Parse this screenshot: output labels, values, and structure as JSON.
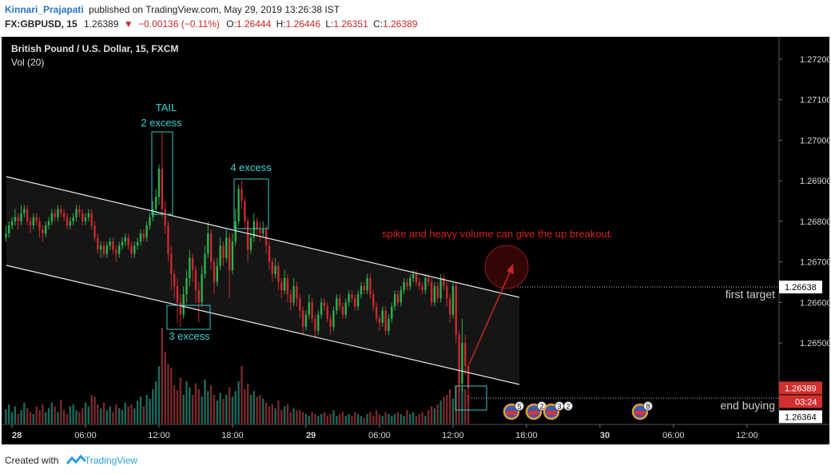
{
  "header": {
    "author": "Kinnari_Prajapati",
    "published": "published on TradingView.com, May 29, 2019 13:26:38 IST",
    "symbol": "FX:GBPUSD, 15",
    "direction": "▼",
    "change": "−0.00136 (−0.11%)",
    "ohlc_labels": [
      "O:",
      "H:",
      "L:",
      "C:"
    ]
  },
  "chart_data": {
    "type": "candlestick",
    "title": "British Pound / U.S. Dollar, 15, FXCM",
    "subtitle": "Vol (20)",
    "x": [
      -0.5,
      -0.25,
      0,
      0.25,
      0.5,
      0.75,
      1,
      1.25,
      1.5,
      1.75,
      2,
      2.25,
      2.5,
      2.75,
      3,
      3.25,
      3.5,
      3.75,
      4,
      4.25,
      4.5,
      4.75,
      5,
      5.25,
      5.5,
      5.75,
      6,
      6.25,
      6.5,
      6.75,
      7,
      7.25,
      7.5,
      7.75,
      8,
      8.25,
      8.5,
      8.75,
      9,
      9.25,
      9.5,
      9.75,
      10,
      10.25,
      10.5,
      10.75,
      11,
      11.25,
      11.5,
      11.75,
      12,
      12.25,
      12.5,
      12.75,
      13,
      13.25,
      13.5,
      13.75,
      14,
      14.25,
      14.5,
      14.75,
      15,
      15.25,
      15.5,
      15.75,
      16,
      16.25,
      16.5,
      16.75,
      17,
      17.25,
      17.5,
      17.75,
      18,
      18.25,
      18.5,
      18.75,
      19,
      19.25,
      19.5,
      19.75,
      20,
      20.25,
      20.5,
      20.75,
      21,
      21.25,
      21.5,
      21.75,
      22,
      22.25,
      22.5,
      22.75,
      23,
      23.25,
      23.5,
      23.75,
      24,
      24.25,
      24.5,
      24.75,
      25,
      25.25,
      25.5,
      25.75,
      26,
      26.25,
      26.5,
      26.75,
      27,
      27.25,
      27.5,
      27.75,
      28,
      28.25,
      28.5,
      28.75,
      29,
      29.25,
      29.5,
      29.75,
      30,
      30.25,
      30.5,
      30.75,
      31,
      31.25,
      31.5,
      31.75,
      32,
      32.25,
      32.5,
      32.75,
      33,
      33.25,
      33.5,
      33.75,
      34,
      34.25,
      34.5,
      34.75,
      35,
      35.25,
      35.5,
      35.75,
      36,
      36.25,
      36.5,
      36.75,
      37,
      37.25
    ],
    "open": [
      1.2676,
      1.2677,
      1.2679,
      1.268,
      1.2681,
      1.268,
      1.2682,
      1.2683,
      1.268,
      1.2679,
      1.2681,
      1.268,
      1.2678,
      1.2677,
      1.2679,
      1.268,
      1.2682,
      1.2681,
      1.2683,
      1.2682,
      1.2681,
      1.2679,
      1.268,
      1.2681,
      1.2683,
      1.2682,
      1.268,
      1.2681,
      1.2682,
      1.2679,
      1.2676,
      1.2673,
      1.2674,
      1.2672,
      1.2674,
      1.2675,
      1.2673,
      1.2672,
      1.2674,
      1.2675,
      1.2676,
      1.2674,
      1.2672,
      1.2674,
      1.2675,
      1.2677,
      1.2676,
      1.2679,
      1.2681,
      1.2683,
      1.2686,
      1.2693,
      1.2683,
      1.2679,
      1.2672,
      1.2667,
      1.2664,
      1.266,
      1.2657,
      1.2662,
      1.2666,
      1.2671,
      1.2668,
      1.2663,
      1.266,
      1.2667,
      1.2672,
      1.2677,
      1.267,
      1.2665,
      1.2669,
      1.2674,
      1.2671,
      1.2676,
      1.2668,
      1.2675,
      1.268,
      1.2688,
      1.2685,
      1.268,
      1.2673,
      1.2676,
      1.268,
      1.2678,
      1.2677,
      1.2678,
      1.2674,
      1.267,
      1.2667,
      1.2669,
      1.2665,
      1.2663,
      1.2666,
      1.2662,
      1.266,
      1.2664,
      1.2661,
      1.2658,
      1.2654,
      1.2657,
      1.266,
      1.2656,
      1.2653,
      1.2657,
      1.266,
      1.2659,
      1.2656,
      1.2654,
      1.2658,
      1.2661,
      1.2659,
      1.2657,
      1.266,
      1.2662,
      1.2661,
      1.2659,
      1.2662,
      1.2664,
      1.2663,
      1.2666,
      1.2662,
      1.2659,
      1.2656,
      1.2655,
      1.2658,
      1.2653,
      1.2656,
      1.2659,
      1.2662,
      1.266,
      1.2663,
      1.2665,
      1.2664,
      1.2666,
      1.2667,
      1.2665,
      1.2664,
      1.2663,
      1.2666,
      1.2665,
      1.266,
      1.2664,
      1.2661,
      1.2666,
      1.2664,
      1.2661,
      1.2657,
      1.2664,
      1.2652,
      1.264,
      1.265,
      1.26444
    ],
    "high": [
      1.2679,
      1.268,
      1.2681,
      1.2683,
      1.2682,
      1.2684,
      1.2684,
      1.2684,
      1.2681,
      1.2682,
      1.2682,
      1.2681,
      1.2679,
      1.268,
      1.2681,
      1.2683,
      1.2683,
      1.2684,
      1.2684,
      1.2683,
      1.2682,
      1.2681,
      1.2682,
      1.2684,
      1.2684,
      1.2683,
      1.2682,
      1.2683,
      1.2683,
      1.268,
      1.2677,
      1.2675,
      1.2675,
      1.2675,
      1.2676,
      1.2676,
      1.2674,
      1.2675,
      1.2676,
      1.2677,
      1.2677,
      1.2675,
      1.2675,
      1.2676,
      1.2678,
      1.2678,
      1.268,
      1.2682,
      1.2685,
      1.2688,
      1.2694,
      1.2702,
      1.2685,
      1.268,
      1.2674,
      1.2668,
      1.2666,
      1.2662,
      1.2664,
      1.2668,
      1.2673,
      1.2672,
      1.2669,
      1.2665,
      1.2669,
      1.2674,
      1.268,
      1.2678,
      1.2671,
      1.2671,
      1.2676,
      1.2675,
      1.2678,
      1.2677,
      1.2677,
      1.2683,
      1.2689,
      1.269,
      1.2686,
      1.2681,
      1.2678,
      1.2682,
      1.2681,
      1.268,
      1.268,
      1.2679,
      1.2675,
      1.2671,
      1.2671,
      1.267,
      1.2666,
      1.2668,
      1.2667,
      1.2663,
      1.2666,
      1.2665,
      1.2662,
      1.2659,
      1.2658,
      1.2662,
      1.2661,
      1.2657,
      1.2658,
      1.2661,
      1.2661,
      1.266,
      1.2657,
      1.2659,
      1.2662,
      1.2662,
      1.266,
      1.2661,
      1.2663,
      1.2663,
      1.2662,
      1.2663,
      1.2665,
      1.2665,
      1.2667,
      1.2667,
      1.2663,
      1.266,
      1.2657,
      1.2659,
      1.2659,
      1.2657,
      1.266,
      1.2663,
      1.2663,
      1.2664,
      1.2666,
      1.2666,
      1.2667,
      1.2668,
      1.2668,
      1.2666,
      1.2665,
      1.2667,
      1.2667,
      1.2666,
      1.2665,
      1.2665,
      1.2667,
      1.2667,
      1.2665,
      1.2662,
      1.2665,
      1.2665,
      1.2653,
      1.2656,
      1.2652,
      1.26446
    ],
    "low": [
      1.2675,
      1.2676,
      1.2678,
      1.2679,
      1.2678,
      1.2679,
      1.2681,
      1.2679,
      1.2677,
      1.2678,
      1.2679,
      1.2676,
      1.2675,
      1.2676,
      1.2678,
      1.2679,
      1.268,
      1.268,
      1.2681,
      1.268,
      1.2678,
      1.2678,
      1.2679,
      1.268,
      1.2681,
      1.2679,
      1.2679,
      1.268,
      1.2678,
      1.2675,
      1.2672,
      1.2671,
      1.2671,
      1.2671,
      1.2673,
      1.2672,
      1.267,
      1.2671,
      1.2673,
      1.2674,
      1.2673,
      1.2671,
      1.2671,
      1.2673,
      1.2674,
      1.2675,
      1.2675,
      1.2678,
      1.268,
      1.2682,
      1.2684,
      1.2681,
      1.2677,
      1.267,
      1.2663,
      1.2661,
      1.2655,
      1.2654,
      1.2656,
      1.266,
      1.2664,
      1.2665,
      1.266,
      1.2655,
      1.2659,
      1.2666,
      1.2671,
      1.2668,
      1.2662,
      1.2664,
      1.2668,
      1.2669,
      1.267,
      1.2661,
      1.2667,
      1.2674,
      1.2679,
      1.2683,
      1.2678,
      1.267,
      1.2672,
      1.2675,
      1.2676,
      1.2675,
      1.2676,
      1.2672,
      1.2668,
      1.2665,
      1.2666,
      1.2663,
      1.2661,
      1.2662,
      1.266,
      1.2658,
      1.2659,
      1.2659,
      1.2656,
      1.2652,
      1.2653,
      1.2656,
      1.2655,
      1.2651,
      1.2652,
      1.2656,
      1.2658,
      1.2655,
      1.2652,
      1.2653,
      1.2657,
      1.2658,
      1.2656,
      1.2656,
      1.2659,
      1.266,
      1.2658,
      1.2658,
      1.2661,
      1.2662,
      1.2662,
      1.2661,
      1.2658,
      1.2655,
      1.2653,
      1.2654,
      1.2652,
      1.2652,
      1.2655,
      1.2658,
      1.2659,
      1.2659,
      1.2662,
      1.2663,
      1.2663,
      1.2665,
      1.2664,
      1.2663,
      1.2662,
      1.2662,
      1.2664,
      1.2659,
      1.2659,
      1.266,
      1.266,
      1.2663,
      1.2659,
      1.2655,
      1.2656,
      1.265,
      1.2638,
      1.2638,
      1.2642,
      1.26351
    ],
    "close": [
      1.2677,
      1.2679,
      1.268,
      1.2681,
      1.268,
      1.2682,
      1.2683,
      1.268,
      1.2679,
      1.2681,
      1.268,
      1.2678,
      1.2677,
      1.2679,
      1.268,
      1.2682,
      1.2681,
      1.2683,
      1.2682,
      1.2681,
      1.2679,
      1.268,
      1.2681,
      1.2683,
      1.2682,
      1.268,
      1.2681,
      1.2682,
      1.2679,
      1.2676,
      1.2673,
      1.2674,
      1.2672,
      1.2674,
      1.2675,
      1.2673,
      1.2672,
      1.2674,
      1.2675,
      1.2676,
      1.2674,
      1.2672,
      1.2674,
      1.2675,
      1.2677,
      1.2676,
      1.2679,
      1.2681,
      1.2683,
      1.2686,
      1.2693,
      1.2683,
      1.2679,
      1.2672,
      1.2667,
      1.2664,
      1.266,
      1.2657,
      1.2662,
      1.2666,
      1.2671,
      1.2668,
      1.2663,
      1.266,
      1.2667,
      1.2672,
      1.2677,
      1.267,
      1.2665,
      1.2669,
      1.2674,
      1.2671,
      1.2676,
      1.2668,
      1.2675,
      1.268,
      1.2688,
      1.2685,
      1.268,
      1.2673,
      1.2676,
      1.268,
      1.2678,
      1.2677,
      1.2678,
      1.2674,
      1.267,
      1.2667,
      1.2669,
      1.2665,
      1.2663,
      1.2666,
      1.2662,
      1.266,
      1.2664,
      1.2661,
      1.2658,
      1.2654,
      1.2657,
      1.266,
      1.2656,
      1.2653,
      1.2657,
      1.266,
      1.2659,
      1.2656,
      1.2654,
      1.2658,
      1.2661,
      1.2659,
      1.2657,
      1.266,
      1.2662,
      1.2661,
      1.2659,
      1.2662,
      1.2664,
      1.2663,
      1.2666,
      1.2662,
      1.2659,
      1.2656,
      1.2655,
      1.2658,
      1.2653,
      1.2656,
      1.2659,
      1.2662,
      1.266,
      1.2663,
      1.2665,
      1.2664,
      1.2666,
      1.2667,
      1.2665,
      1.2664,
      1.2663,
      1.2666,
      1.2665,
      1.266,
      1.2664,
      1.2661,
      1.2666,
      1.2664,
      1.2661,
      1.2657,
      1.2664,
      1.2652,
      1.264,
      1.265,
      1.26444,
      1.26389
    ],
    "volume": [
      15,
      20,
      12,
      18,
      10,
      14,
      22,
      16,
      12,
      10,
      18,
      14,
      20,
      12,
      16,
      22,
      18,
      12,
      25,
      14,
      10,
      18,
      20,
      14,
      12,
      16,
      22,
      18,
      30,
      28,
      20,
      16,
      22,
      14,
      18,
      12,
      20,
      16,
      14,
      22,
      18,
      20,
      16,
      24,
      28,
      18,
      30,
      26,
      36,
      44,
      60,
      100,
      75,
      62,
      58,
      40,
      35,
      48,
      30,
      44,
      38,
      30,
      42,
      36,
      28,
      46,
      34,
      40,
      30,
      24,
      32,
      26,
      30,
      38,
      28,
      34,
      44,
      60,
      36,
      42,
      30,
      34,
      28,
      30,
      26,
      22,
      18,
      20,
      16,
      24,
      14,
      18,
      20,
      12,
      16,
      14,
      14,
      12,
      10,
      8,
      12,
      10,
      8,
      10,
      12,
      8,
      10,
      14,
      8,
      10,
      12,
      8,
      10,
      8,
      12,
      10,
      8,
      6,
      10,
      12,
      8,
      14,
      10,
      8,
      12,
      10,
      8,
      10,
      12,
      10,
      8,
      14,
      10,
      12,
      8,
      10,
      12,
      8,
      14,
      18,
      16,
      20,
      24,
      28,
      30,
      36,
      26,
      40,
      44,
      38,
      36,
      30
    ],
    "up_color": "#2bb34c",
    "down_color": "#cc2a30",
    "volume_up_color": "#1b6b5c",
    "volume_down_color": "#7a2a2e",
    "xlim": [
      -0.98,
      62.62
    ],
    "xticks": [
      {
        "value": 0,
        "label": "28"
      },
      {
        "value": 6,
        "label": "06:00"
      },
      {
        "value": 12,
        "label": "12:00"
      },
      {
        "value": 18,
        "label": "18:00"
      },
      {
        "value": 24,
        "label": "29"
      },
      {
        "value": 30,
        "label": "06:00"
      },
      {
        "value": 36,
        "label": "12:00"
      },
      {
        "value": 42,
        "label": "18:00"
      },
      {
        "value": 48,
        "label": "30"
      },
      {
        "value": 54,
        "label": "06:00"
      },
      {
        "value": 60,
        "label": "12:00"
      }
    ],
    "ylim": [
      1.26301,
      1.27267
    ],
    "yticks": [
      {
        "value": 1.265,
        "label": "1.26500"
      },
      {
        "value": 1.266,
        "label": "1.26600"
      },
      {
        "value": 1.267,
        "label": "1.26700"
      },
      {
        "value": 1.268,
        "label": "1.26800"
      },
      {
        "value": 1.269,
        "label": "1.26900"
      },
      {
        "value": 1.27,
        "label": "1.27000"
      },
      {
        "value": 1.271,
        "label": "1.27100"
      },
      {
        "value": 1.272,
        "label": "1.27200"
      }
    ],
    "vlim": [
      0,
      100
    ],
    "grid": false,
    "price_lines": [
      {
        "value": 1.26638,
        "label": "first target"
      },
      {
        "value": 1.26364,
        "label": "end buying"
      }
    ],
    "countdown": "03:24",
    "annotations": [
      "TAIL",
      "2 excess",
      "3 excess",
      "4 excess",
      "spike and heavy volume can give the up breakout."
    ],
    "events": [
      5,
      2,
      3,
      2,
      8
    ]
  },
  "footer": {
    "text": "Created with",
    "brand": "TradingView"
  }
}
